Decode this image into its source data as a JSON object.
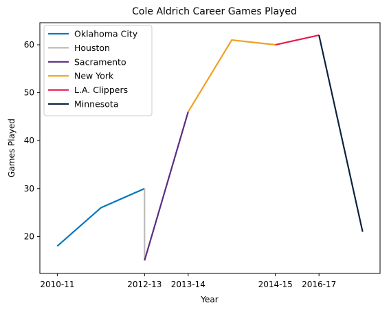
{
  "chart_data": {
    "type": "line",
    "title": "Cole Aldrich Career Games Played",
    "xlabel": "Year",
    "ylabel": "Games Played",
    "x_ticks": [
      {
        "x": 0,
        "label": "2010-11"
      },
      {
        "x": 2,
        "label": "2012-13"
      },
      {
        "x": 3,
        "label": "2013-14"
      },
      {
        "x": 5,
        "label": "2014-15"
      },
      {
        "x": 6,
        "label": "2016-17"
      }
    ],
    "y_ticks": [
      20,
      30,
      40,
      50,
      60
    ],
    "xlim": [
      -0.4,
      7.4
    ],
    "ylim": [
      12.3,
      64.6
    ],
    "legend_position": "upper-left",
    "grid": false,
    "series": [
      {
        "name": "Oklahoma City",
        "color": "#0077c0",
        "points": [
          [
            0,
            18
          ],
          [
            1,
            26
          ],
          [
            2,
            30
          ]
        ]
      },
      {
        "name": "Houston",
        "color": "#bbbbbb",
        "points": [
          [
            2,
            30
          ],
          [
            2,
            15
          ]
        ]
      },
      {
        "name": "Sacramento",
        "color": "#5a2d81",
        "points": [
          [
            2,
            15
          ],
          [
            3,
            46
          ]
        ]
      },
      {
        "name": "New York",
        "color": "#f1a01f",
        "points": [
          [
            3,
            46
          ],
          [
            4,
            61
          ],
          [
            5,
            60
          ]
        ]
      },
      {
        "name": "L.A. Clippers",
        "color": "#e31c4b",
        "points": [
          [
            5,
            60
          ],
          [
            6,
            62
          ]
        ]
      },
      {
        "name": "Minnesota",
        "color": "#0c2340",
        "points": [
          [
            6,
            62
          ],
          [
            7,
            21
          ]
        ]
      }
    ]
  }
}
